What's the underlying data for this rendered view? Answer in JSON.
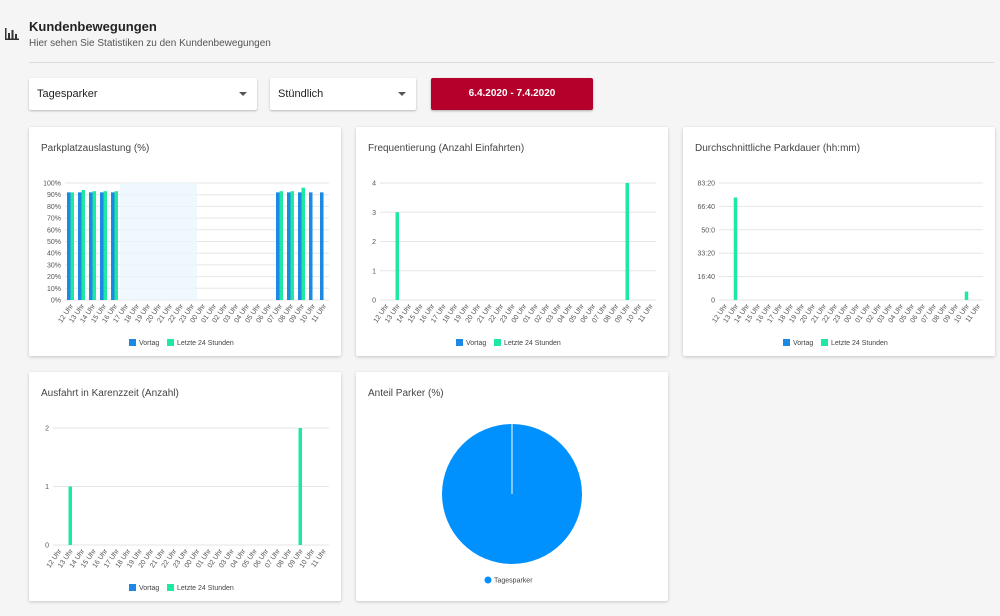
{
  "header": {
    "title": "Kundenbewegungen",
    "subtitle": "Hier sehen Sie Statistiken zu den Kundenbewegungen"
  },
  "filters": {
    "parker_type": "Tagesparker",
    "interval": "Stündlich",
    "date_range": "6.4.2020 - 7.4.2020"
  },
  "colors": {
    "accent": "#b4002b",
    "vortag": "#1e88e5",
    "letzte24": "#1de9a0",
    "pie": "#0091ff"
  },
  "cards": {
    "auslastung_title": "Parkplatzauslastung (%)",
    "frequentierung_title": "Frequentierung (Anzahl Einfahrten)",
    "parkdauer_title": "Durchschnittliche Parkdauer (hh:mm)",
    "karenzzeit_title": "Ausfahrt in Karenzzeit (Anzahl)",
    "anteil_title": "Anteil Parker (%)"
  },
  "chart_data": [
    {
      "id": "auslastung",
      "type": "bar",
      "categories": [
        "12 Uhr",
        "13 Uhr",
        "14 Uhr",
        "15 Uhr",
        "16 Uhr",
        "17 Uhr",
        "18 Uhr",
        "19 Uhr",
        "20 Uhr",
        "21 Uhr",
        "22 Uhr",
        "23 Uhr",
        "00 Uhr",
        "01 Uhr",
        "02 Uhr",
        "03 Uhr",
        "04 Uhr",
        "05 Uhr",
        "06 Uhr",
        "07 Uhr",
        "08 Uhr",
        "09 Uhr",
        "10 Uhr",
        "11 Uhr"
      ],
      "series": [
        {
          "name": "Vortag",
          "values": [
            92,
            92,
            92,
            92,
            92,
            null,
            null,
            null,
            null,
            null,
            null,
            null,
            null,
            null,
            null,
            null,
            null,
            null,
            null,
            92,
            92,
            92,
            92,
            92
          ]
        },
        {
          "name": "Letzte 24 Stunden",
          "values": [
            92,
            94,
            93,
            93,
            93,
            null,
            null,
            null,
            null,
            null,
            null,
            null,
            null,
            null,
            null,
            null,
            null,
            null,
            null,
            93,
            93,
            96,
            null,
            null
          ]
        }
      ],
      "yticks": [
        "0%",
        "10%",
        "20%",
        "30%",
        "40%",
        "50%",
        "60%",
        "70%",
        "80%",
        "90%",
        "100%"
      ],
      "ylim": [
        0,
        100
      ]
    },
    {
      "id": "frequentierung",
      "type": "bar",
      "categories": [
        "12 Uhr",
        "13 Uhr",
        "14 Uhr",
        "15 Uhr",
        "16 Uhr",
        "17 Uhr",
        "18 Uhr",
        "19 Uhr",
        "20 Uhr",
        "21 Uhr",
        "22 Uhr",
        "23 Uhr",
        "00 Uhr",
        "01 Uhr",
        "02 Uhr",
        "03 Uhr",
        "04 Uhr",
        "05 Uhr",
        "06 Uhr",
        "07 Uhr",
        "08 Uhr",
        "09 Uhr",
        "10 Uhr",
        "11 Uhr"
      ],
      "series": [
        {
          "name": "Vortag",
          "values": [
            0,
            0,
            0,
            0,
            0,
            0,
            0,
            0,
            0,
            0,
            0,
            0,
            0,
            0,
            0,
            0,
            0,
            0,
            0,
            0,
            0,
            0,
            0,
            0
          ]
        },
        {
          "name": "Letzte 24 Stunden",
          "values": [
            0,
            3,
            0,
            0,
            0,
            0,
            0,
            0,
            0,
            0,
            0,
            0,
            0,
            0,
            0,
            0,
            0,
            0,
            0,
            0,
            0,
            4,
            0,
            0
          ]
        }
      ],
      "yticks": [
        "0",
        "1",
        "2",
        "3",
        "4"
      ],
      "ylim": [
        0,
        4
      ]
    },
    {
      "id": "parkdauer",
      "type": "bar",
      "categories": [
        "12 Uhr",
        "13 Uhr",
        "14 Uhr",
        "15 Uhr",
        "16 Uhr",
        "17 Uhr",
        "18 Uhr",
        "19 Uhr",
        "20 Uhr",
        "21 Uhr",
        "22 Uhr",
        "23 Uhr",
        "00 Uhr",
        "01 Uhr",
        "02 Uhr",
        "03 Uhr",
        "04 Uhr",
        "05 Uhr",
        "06 Uhr",
        "07 Uhr",
        "08 Uhr",
        "09 Uhr",
        "10 Uhr",
        "11 Uhr"
      ],
      "series": [
        {
          "name": "Vortag",
          "values": [
            0,
            0,
            0,
            0,
            0,
            0,
            0,
            0,
            0,
            0,
            0,
            0,
            0,
            0,
            0,
            0,
            0,
            0,
            0,
            0,
            0,
            0,
            0,
            0
          ]
        },
        {
          "name": "Letzte 24 Stunden",
          "values": [
            0,
            73,
            0,
            0,
            0,
            0,
            0,
            0,
            0,
            0,
            0,
            0,
            0,
            0,
            0,
            0,
            0,
            0,
            0,
            0,
            0,
            0,
            6,
            0
          ]
        }
      ],
      "yticks": [
        "0",
        "16:40",
        "33:20",
        "50:0",
        "66:40",
        "83:20"
      ],
      "ylim": [
        0,
        83.33
      ]
    },
    {
      "id": "karenzzeit",
      "type": "bar",
      "categories": [
        "12 Uhr",
        "13 Uhr",
        "14 Uhr",
        "15 Uhr",
        "16 Uhr",
        "17 Uhr",
        "18 Uhr",
        "19 Uhr",
        "20 Uhr",
        "21 Uhr",
        "22 Uhr",
        "23 Uhr",
        "00 Uhr",
        "01 Uhr",
        "02 Uhr",
        "03 Uhr",
        "04 Uhr",
        "05 Uhr",
        "06 Uhr",
        "07 Uhr",
        "08 Uhr",
        "09 Uhr",
        "10 Uhr",
        "11 Uhr"
      ],
      "series": [
        {
          "name": "Vortag",
          "values": [
            0,
            0,
            0,
            0,
            0,
            0,
            0,
            0,
            0,
            0,
            0,
            0,
            0,
            0,
            0,
            0,
            0,
            0,
            0,
            0,
            0,
            0,
            0,
            0
          ]
        },
        {
          "name": "Letzte 24 Stunden",
          "values": [
            0,
            1,
            0,
            0,
            0,
            0,
            0,
            0,
            0,
            0,
            0,
            0,
            0,
            0,
            0,
            0,
            0,
            0,
            0,
            0,
            0,
            2,
            0,
            0
          ]
        }
      ],
      "yticks": [
        "0",
        "1",
        "2"
      ],
      "ylim": [
        0,
        2
      ]
    },
    {
      "id": "anteil",
      "type": "pie",
      "categories": [
        "Tagesparker"
      ],
      "values": [
        100
      ]
    }
  ]
}
